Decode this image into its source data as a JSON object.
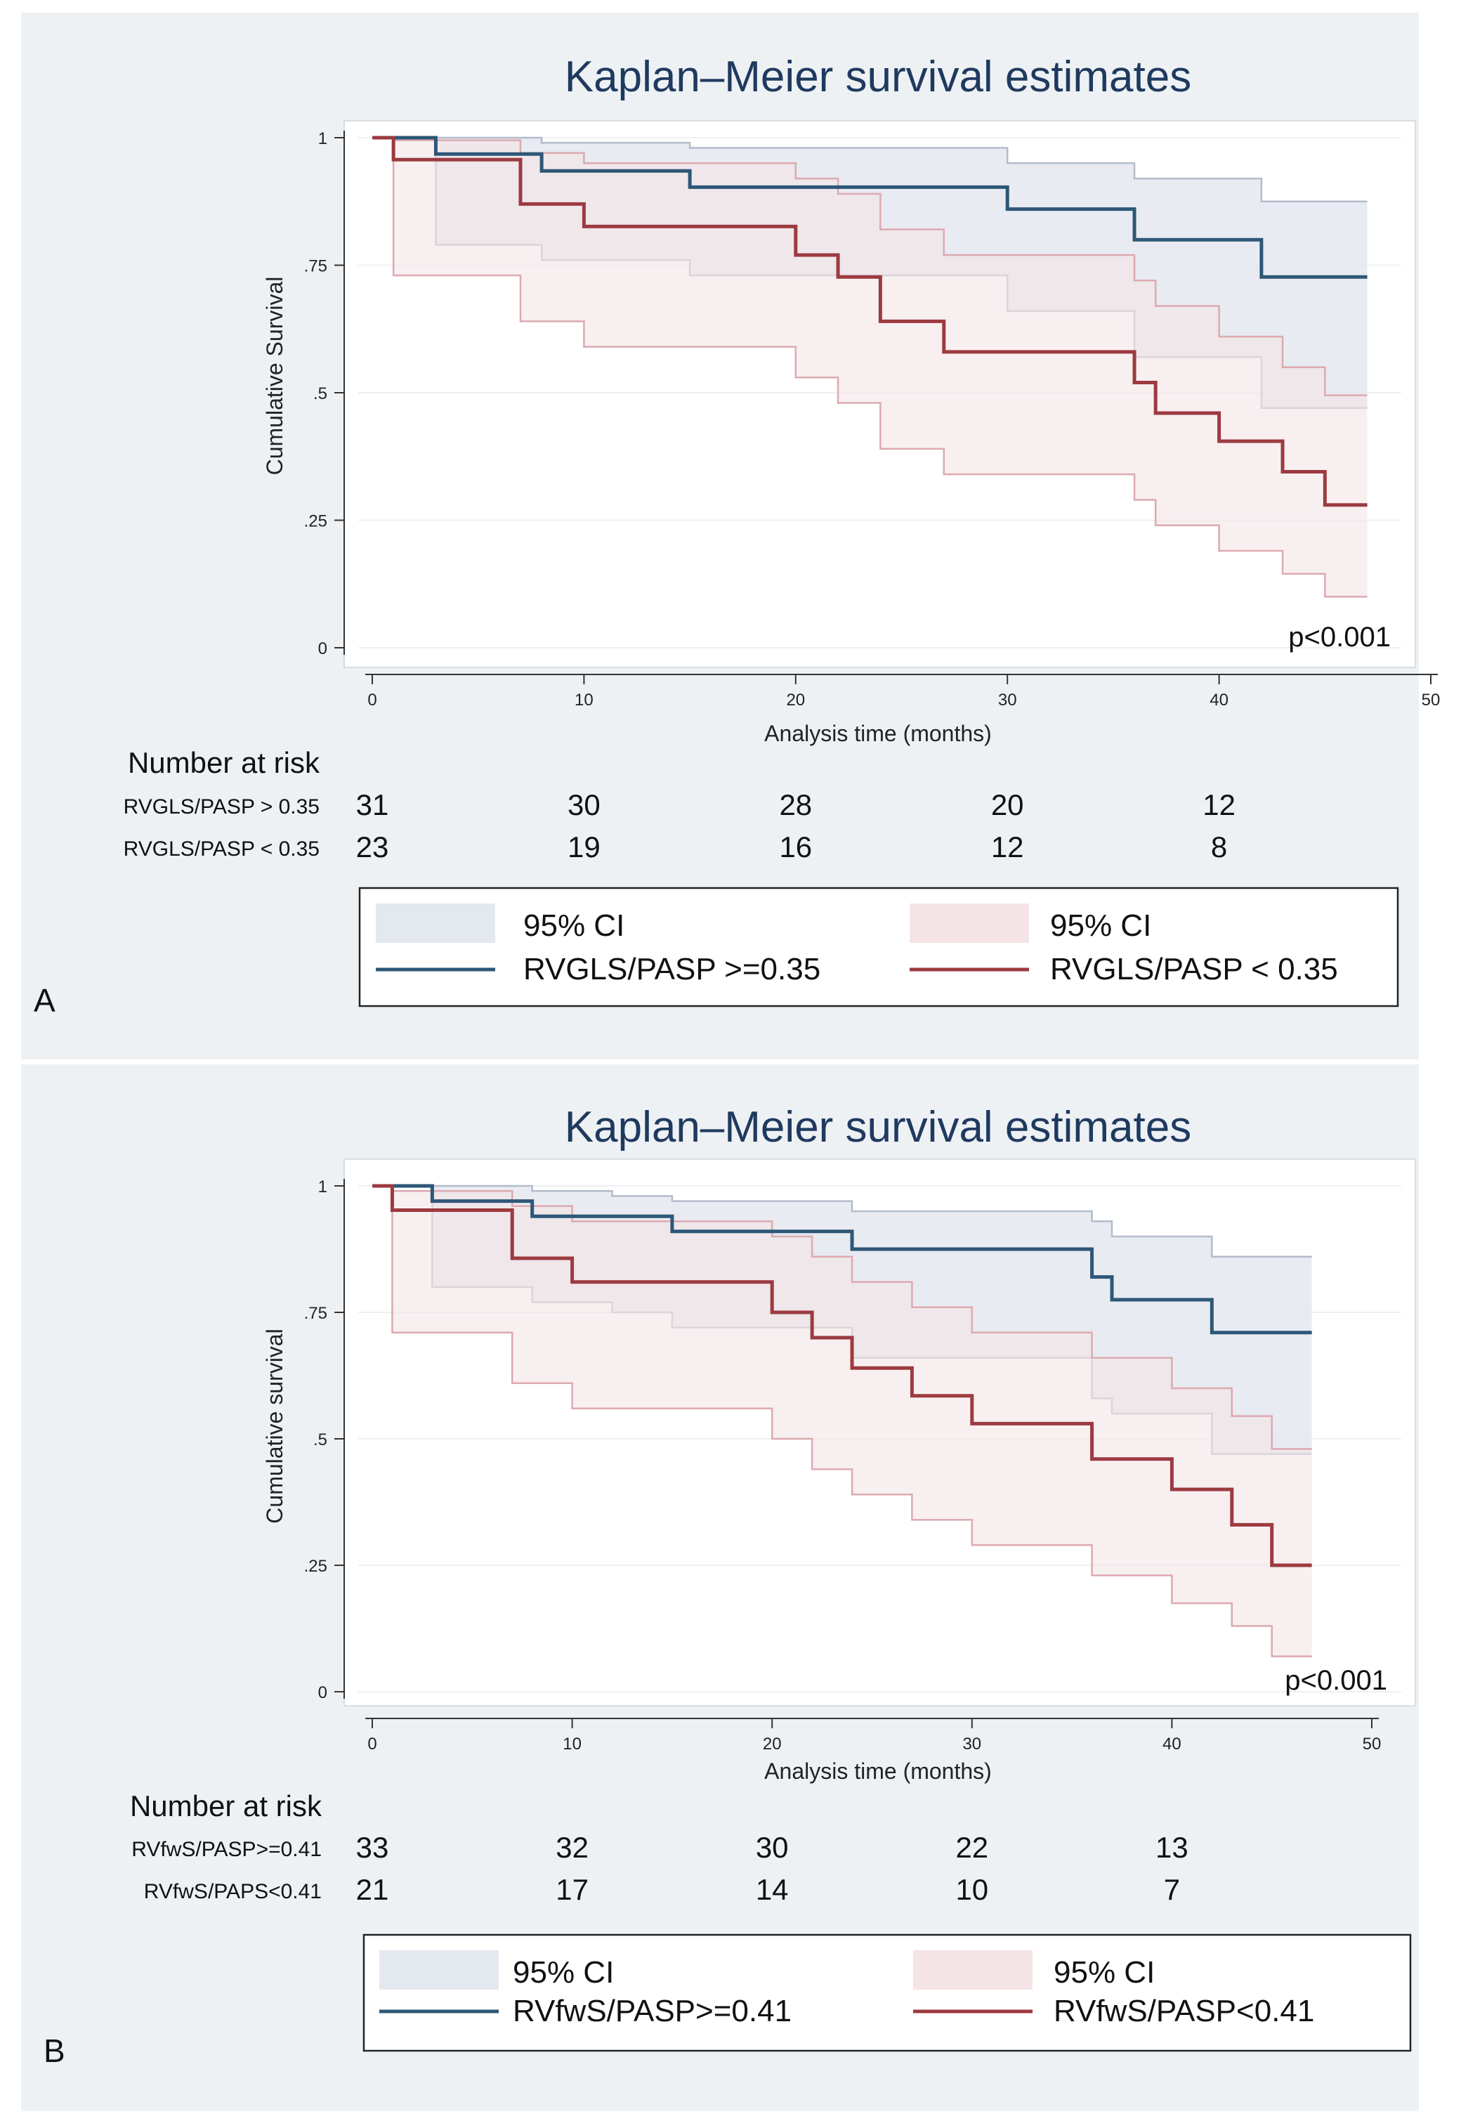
{
  "colors": {
    "panel_bg": "#eef1f4",
    "plot_bg": "#ffffff",
    "gridline": "#eef0f3",
    "axis": "#333333",
    "title": "#1f3a5f",
    "blue_line": "#2d5777",
    "red_line": "#9c3a40",
    "blue_ci_fill": "#e4e8ef",
    "blue_ci_edge": "#b3bccb",
    "red_ci_fill": "#f4e4e6",
    "red_ci_edge": "#dcaab0"
  },
  "chart_data": [
    {
      "panel_label": "A",
      "type": "line",
      "title": "Kaplan–Meier survival estimates",
      "xlabel": "Analysis time (months)",
      "ylabel": "Cumulative Survival",
      "xlim": [
        0,
        50
      ],
      "ylim": [
        0,
        1
      ],
      "xticks": [
        0,
        10,
        20,
        30,
        40,
        50
      ],
      "yticks": [
        0,
        0.25,
        0.5,
        0.75,
        1
      ],
      "ytick_labels": [
        "0",
        ".25",
        ".5",
        ".75",
        "1"
      ],
      "annotation": "p<0.001",
      "series": [
        {
          "name": "RVGLS/PASP >=0.35",
          "color_key": "blue",
          "x": [
            0,
            3,
            8,
            15,
            30,
            36,
            42,
            47
          ],
          "y": [
            1.0,
            0.968,
            0.935,
            0.903,
            0.86,
            0.8,
            0.727,
            0.727
          ],
          "ci_upper": [
            1.0,
            1.0,
            0.99,
            0.98,
            0.95,
            0.92,
            0.875,
            0.875
          ],
          "ci_lower": [
            1.0,
            0.79,
            0.76,
            0.73,
            0.66,
            0.57,
            0.47,
            0.47
          ]
        },
        {
          "name": "RVGLS/PASP < 0.35",
          "color_key": "red",
          "x": [
            0,
            1,
            7,
            10,
            20,
            22,
            24,
            27,
            36,
            37,
            40,
            43,
            45,
            47
          ],
          "y": [
            1.0,
            0.957,
            0.87,
            0.826,
            0.77,
            0.727,
            0.64,
            0.58,
            0.52,
            0.46,
            0.405,
            0.345,
            0.28,
            0.28
          ],
          "ci_upper": [
            1.0,
            0.995,
            0.97,
            0.95,
            0.92,
            0.89,
            0.82,
            0.77,
            0.72,
            0.67,
            0.61,
            0.55,
            0.495,
            0.495
          ],
          "ci_lower": [
            1.0,
            0.73,
            0.64,
            0.59,
            0.53,
            0.48,
            0.39,
            0.34,
            0.29,
            0.24,
            0.19,
            0.145,
            0.1,
            0.1
          ]
        }
      ],
      "risk_table": {
        "heading": "Number at risk",
        "times": [
          0,
          10,
          20,
          30,
          40
        ],
        "rows": [
          {
            "label": "RVGLS/PASP > 0.35",
            "values": [
              31,
              30,
              28,
              20,
              12
            ]
          },
          {
            "label": "RVGLS/PASP < 0.35",
            "values": [
              23,
              19,
              16,
              12,
              8
            ]
          }
        ]
      },
      "legend": {
        "ci_left": "95% CI",
        "ci_right": "95% CI",
        "line_left": "RVGLS/PASP >=0.35",
        "line_right": "RVGLS/PASP < 0.35"
      }
    },
    {
      "panel_label": "B",
      "type": "line",
      "title": "Kaplan–Meier survival estimates",
      "xlabel": "Analysis time (months)",
      "ylabel": "Cumulative survival",
      "xlim": [
        0,
        50
      ],
      "ylim": [
        0,
        1
      ],
      "xticks": [
        0,
        10,
        20,
        30,
        40,
        50
      ],
      "yticks": [
        0,
        0.25,
        0.5,
        0.75,
        1
      ],
      "ytick_labels": [
        "0",
        ".25",
        ".5",
        ".75",
        "1"
      ],
      "annotation": "p<0.001",
      "series": [
        {
          "name": "RVfwS/PASP>=0.41",
          "color_key": "blue",
          "x": [
            0,
            3,
            8,
            12,
            15,
            24,
            36,
            37,
            42,
            47
          ],
          "y": [
            1.0,
            0.97,
            0.94,
            0.94,
            0.91,
            0.875,
            0.82,
            0.775,
            0.71,
            0.71
          ],
          "ci_upper": [
            1.0,
            1.0,
            0.99,
            0.98,
            0.97,
            0.95,
            0.93,
            0.9,
            0.86,
            0.86
          ],
          "ci_lower": [
            1.0,
            0.8,
            0.77,
            0.75,
            0.72,
            0.66,
            0.58,
            0.55,
            0.47,
            0.47
          ]
        },
        {
          "name": "RVfwS/PASP<0.41",
          "color_key": "red",
          "x": [
            0,
            1,
            7,
            10,
            20,
            22,
            24,
            27,
            30,
            36,
            40,
            43,
            45,
            47
          ],
          "y": [
            1.0,
            0.952,
            0.857,
            0.81,
            0.75,
            0.7,
            0.64,
            0.585,
            0.53,
            0.46,
            0.4,
            0.33,
            0.25,
            0.25
          ],
          "ci_upper": [
            1.0,
            0.99,
            0.96,
            0.93,
            0.9,
            0.86,
            0.81,
            0.76,
            0.71,
            0.66,
            0.6,
            0.545,
            0.48,
            0.48
          ],
          "ci_lower": [
            1.0,
            0.71,
            0.61,
            0.56,
            0.5,
            0.44,
            0.39,
            0.34,
            0.29,
            0.23,
            0.175,
            0.13,
            0.07,
            0.07
          ]
        }
      ],
      "risk_table": {
        "heading": "Number at risk",
        "times": [
          0,
          10,
          20,
          30,
          40
        ],
        "rows": [
          {
            "label": "RVfwS/PASP>=0.41",
            "values": [
              33,
              32,
              30,
              22,
              13
            ]
          },
          {
            "label": "RVfwS/PAPS<0.41",
            "values": [
              21,
              17,
              14,
              10,
              7
            ]
          }
        ]
      },
      "legend": {
        "ci_left": "95% CI",
        "ci_right": "95% CI",
        "line_left": "RVfwS/PASP>=0.41",
        "line_right": "RVfwS/PASP<0.41"
      }
    }
  ]
}
